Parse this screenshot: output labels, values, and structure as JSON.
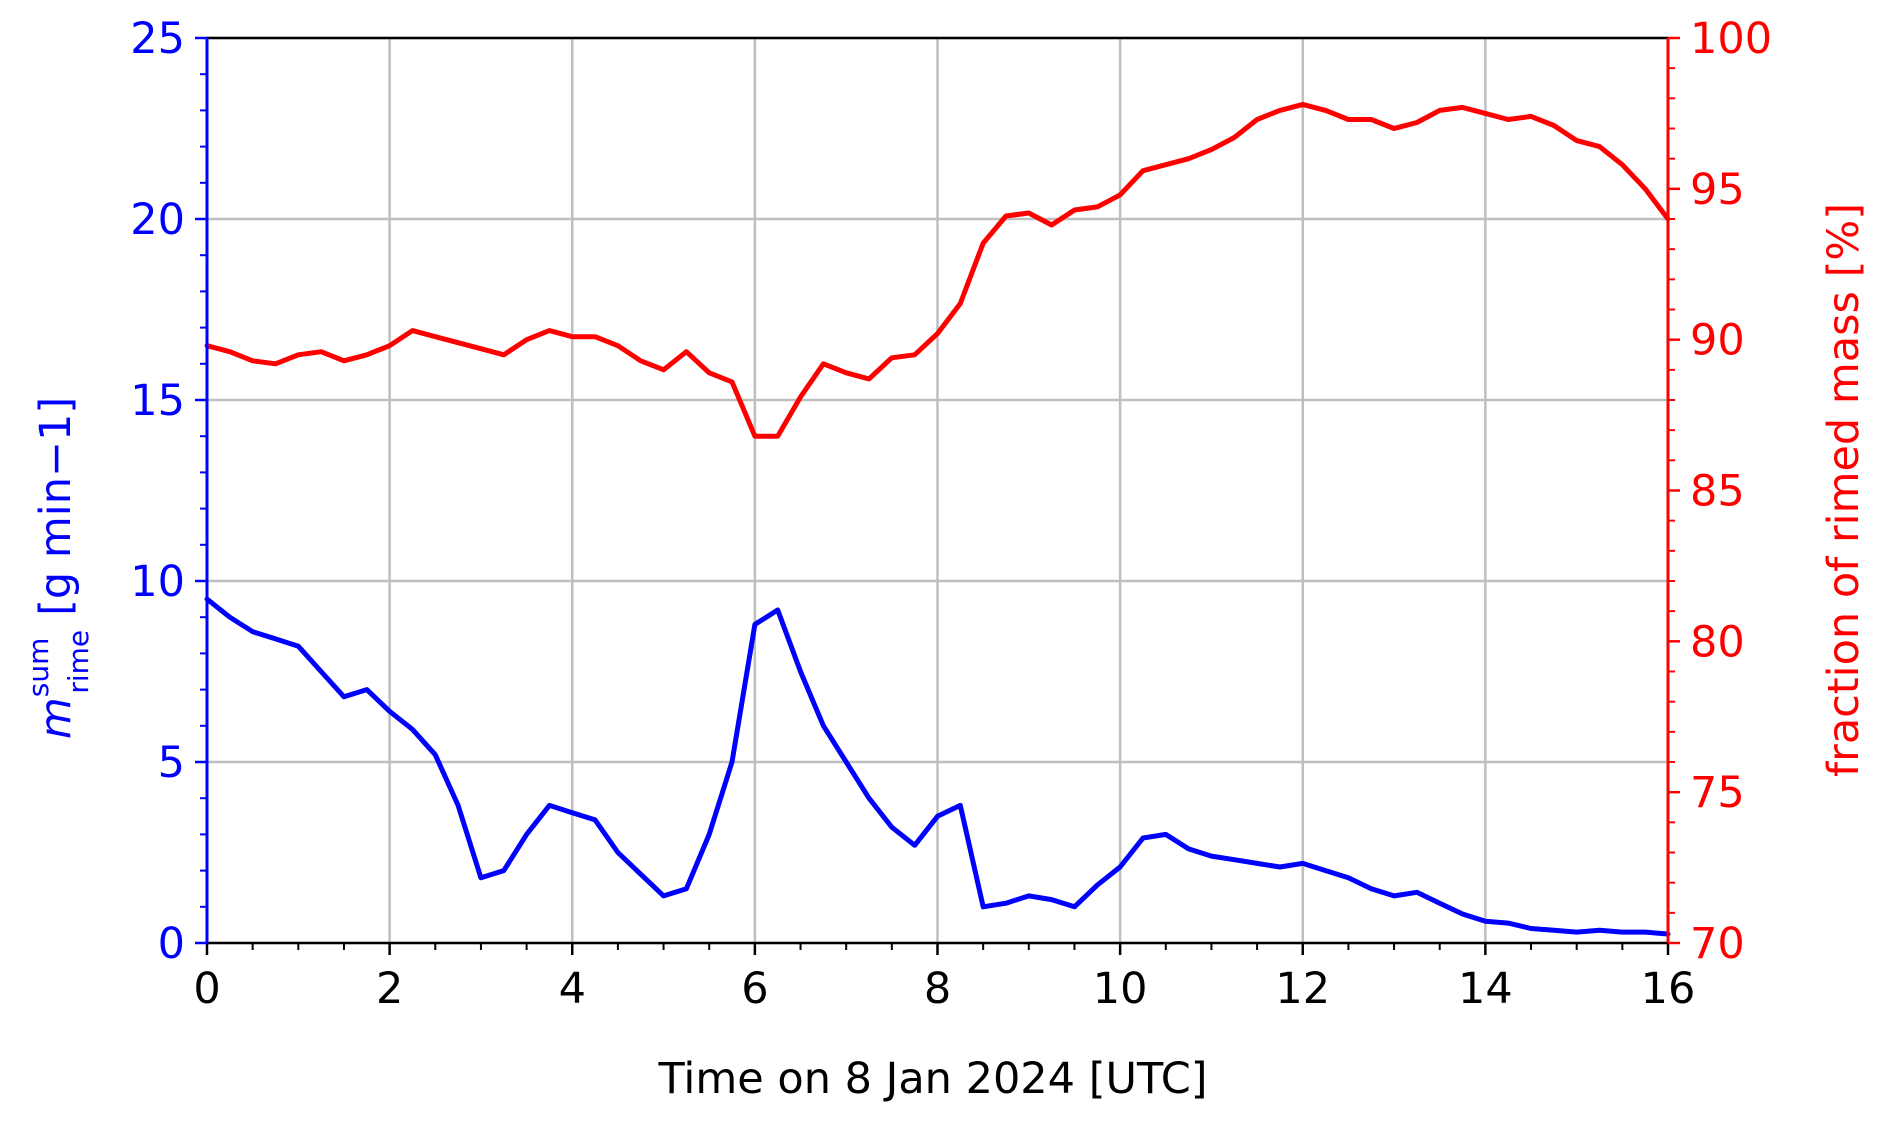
{
  "chart_data": {
    "type": "line",
    "xlabel": "Time on 8 Jan 2024 [UTC]",
    "xlim": [
      0,
      16
    ],
    "x_ticks": [
      "0",
      "2",
      "4",
      "6",
      "8",
      "10",
      "12",
      "14",
      "16"
    ],
    "left_axis": {
      "label": "[g min−1]",
      "symbol": "m",
      "symbol_sup": "sum",
      "symbol_sub": "rime",
      "ylim": [
        0,
        25
      ],
      "ticks": [
        "0",
        "5",
        "10",
        "15",
        "20",
        "25"
      ],
      "color": "#0000ff"
    },
    "right_axis": {
      "label": "fraction of rimed mass [%]",
      "ylim": [
        70,
        100
      ],
      "ticks": [
        "70",
        "75",
        "80",
        "85",
        "90",
        "95",
        "100"
      ],
      "color": "#ff0000"
    },
    "grid": true,
    "series": [
      {
        "axis": "left",
        "color": "#0000ff",
        "x": [
          0,
          0.25,
          0.5,
          0.75,
          1.0,
          1.25,
          1.5,
          1.75,
          2.0,
          2.25,
          2.5,
          2.75,
          3.0,
          3.25,
          3.5,
          3.75,
          4.0,
          4.25,
          4.5,
          4.75,
          5.0,
          5.25,
          5.5,
          5.75,
          6.0,
          6.25,
          6.5,
          6.75,
          7.0,
          7.25,
          7.5,
          7.75,
          8.0,
          8.25,
          8.5,
          8.75,
          9.0,
          9.25,
          9.5,
          9.75,
          10.0,
          10.25,
          10.5,
          10.75,
          11.0,
          11.25,
          11.5,
          11.75,
          12.0,
          12.25,
          12.5,
          12.75,
          13.0,
          13.25,
          13.5,
          13.75,
          14.0,
          14.25,
          14.5,
          14.75,
          15.0,
          15.25,
          15.5,
          15.75,
          16.0
        ],
        "y": [
          9.5,
          9.0,
          8.6,
          8.4,
          8.2,
          7.5,
          6.8,
          7.0,
          6.4,
          5.9,
          5.2,
          3.8,
          1.8,
          2.0,
          3.0,
          3.8,
          3.6,
          3.4,
          2.5,
          1.9,
          1.3,
          1.5,
          3.0,
          5.0,
          8.8,
          9.2,
          7.5,
          6.0,
          5.0,
          4.0,
          3.2,
          2.7,
          3.5,
          3.8,
          1.0,
          1.1,
          1.3,
          1.2,
          1.0,
          1.6,
          2.1,
          2.9,
          3.0,
          2.6,
          2.4,
          2.3,
          2.2,
          2.1,
          2.2,
          2.0,
          1.8,
          1.5,
          1.3,
          1.4,
          1.1,
          0.8,
          0.6,
          0.55,
          0.4,
          0.35,
          0.3,
          0.35,
          0.3,
          0.3,
          0.25
        ]
      },
      {
        "axis": "right",
        "color": "#ff0000",
        "x": [
          0,
          0.25,
          0.5,
          0.75,
          1.0,
          1.25,
          1.5,
          1.75,
          2.0,
          2.25,
          2.5,
          2.75,
          3.0,
          3.25,
          3.5,
          3.75,
          4.0,
          4.25,
          4.5,
          4.75,
          5.0,
          5.25,
          5.5,
          5.75,
          6.0,
          6.25,
          6.5,
          6.75,
          7.0,
          7.25,
          7.5,
          7.75,
          8.0,
          8.25,
          8.5,
          8.75,
          9.0,
          9.25,
          9.5,
          9.75,
          10.0,
          10.25,
          10.5,
          10.75,
          11.0,
          11.25,
          11.5,
          11.75,
          12.0,
          12.25,
          12.5,
          12.75,
          13.0,
          13.25,
          13.5,
          13.75,
          14.0,
          14.25,
          14.5,
          14.75,
          15.0,
          15.25,
          15.5,
          15.75,
          16.0
        ],
        "y": [
          89.8,
          89.6,
          89.3,
          89.2,
          89.5,
          89.6,
          89.3,
          89.5,
          89.8,
          90.3,
          90.1,
          89.9,
          89.7,
          89.5,
          90.0,
          90.3,
          90.1,
          90.1,
          89.8,
          89.3,
          89.0,
          89.6,
          88.9,
          88.6,
          86.8,
          86.8,
          88.1,
          89.2,
          88.9,
          88.7,
          89.4,
          89.5,
          90.2,
          91.2,
          93.2,
          94.1,
          94.2,
          93.8,
          94.3,
          94.4,
          94.8,
          95.6,
          95.8,
          96.0,
          96.3,
          96.7,
          97.3,
          97.6,
          97.8,
          97.6,
          97.3,
          97.3,
          97.0,
          97.2,
          97.6,
          97.7,
          97.5,
          97.3,
          97.4,
          97.1,
          96.6,
          96.4,
          95.8,
          95.0,
          94.0
        ]
      }
    ]
  }
}
